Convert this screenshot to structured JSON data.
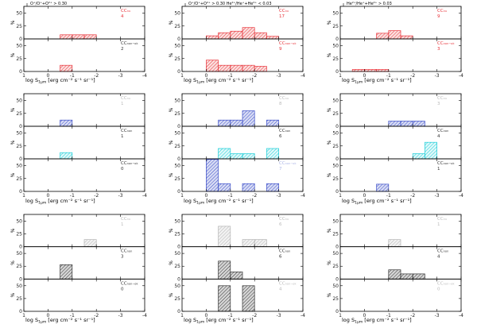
{
  "colors": {
    "red": "#e8333a",
    "red_fill": "#f3a7a3",
    "blue": "#3a4dc8",
    "blue_fill": "#8e9be0",
    "cyan": "#19cdd8",
    "cyan_fill": "#a9eef1",
    "gray": "#b5b5b5",
    "gray_fill": "#d9d9d9",
    "black": "#333333",
    "black_fill": "#8a8a8a",
    "fade": "#bbbbbb",
    "fade_blue": "#aab4e6"
  },
  "chart_data": {
    "type": "bar",
    "title": "",
    "xlabel": "log S$_{1μm}$ [erg cm$^{-2}$ s$^{-1}$ sr$^{-1}$]",
    "xlabel_display": "log S",
    "xlabel_sub": "1μm",
    "xlabel_units": " [erg cm⁻² s⁻¹ sr⁻¹]",
    "ylabel": "%",
    "xlim": [
      1,
      -4
    ],
    "xticks": [
      1,
      0,
      -1,
      -2,
      -3,
      -4
    ],
    "ylim": [
      0,
      60
    ],
    "yticks": [
      0,
      25,
      50
    ],
    "bin_width": 0.5,
    "headers": [
      "O⁺/O⁺+O²⁺ > 0.30",
      "O⁺/O⁺+O²⁺ > 0.30    He²⁺/He⁺+He²⁺ < 0.03",
      "He²⁺/He⁺+He²⁺ > 0.03"
    ],
    "panels": [
      {
        "row": 0,
        "col": 0,
        "stack": 0,
        "nstack": 2,
        "label": "CCₙᵤ",
        "count": "4",
        "color": "red",
        "tag_color": "red",
        "bins": [
          [
            -0.5,
            8
          ],
          [
            -1.0,
            8
          ],
          [
            -1.5,
            8
          ]
        ]
      },
      {
        "row": 0,
        "col": 0,
        "stack": 1,
        "nstack": 2,
        "label": "CCₙₒₙ₋ₒₖ",
        "count": "2",
        "color": "red",
        "tag_color": "black",
        "bins": [
          [
            -0.5,
            12
          ]
        ]
      },
      {
        "row": 0,
        "col": 1,
        "stack": 0,
        "nstack": 2,
        "label": "CCₙᵤ",
        "count": "17",
        "color": "red",
        "tag_color": "red",
        "bins": [
          [
            0.0,
            6
          ],
          [
            -0.5,
            12
          ],
          [
            -1.0,
            15
          ],
          [
            -1.5,
            22
          ],
          [
            -2.0,
            12
          ],
          [
            -2.5,
            5
          ]
        ]
      },
      {
        "row": 0,
        "col": 1,
        "stack": 1,
        "nstack": 2,
        "label": "CCₙₒₙ₋ₒₖ",
        "count": "9",
        "color": "red",
        "tag_color": "red",
        "bins": [
          [
            0.0,
            22
          ],
          [
            -0.5,
            12
          ],
          [
            -1.0,
            12
          ],
          [
            -1.5,
            12
          ],
          [
            -2.0,
            10
          ]
        ]
      },
      {
        "row": 0,
        "col": 2,
        "stack": 0,
        "nstack": 2,
        "label": "CCₙᵤ",
        "count": "9",
        "color": "red",
        "tag_color": "red",
        "bins": [
          [
            -0.5,
            11
          ],
          [
            -1.0,
            16
          ],
          [
            -1.5,
            6
          ]
        ]
      },
      {
        "row": 0,
        "col": 2,
        "stack": 1,
        "nstack": 2,
        "label": "CCₙₒₙ₋ₒₖ",
        "count": "3",
        "color": "red",
        "tag_color": "red",
        "bins": [
          [
            0.5,
            4
          ],
          [
            0.0,
            4
          ],
          [
            -0.5,
            4
          ]
        ]
      },
      {
        "row": 1,
        "col": 0,
        "stack": 0,
        "nstack": 3,
        "label": "CCₙᵤ",
        "count": "1",
        "color": "blue",
        "tag_color": "fade",
        "bins": [
          [
            -0.5,
            12
          ]
        ]
      },
      {
        "row": 1,
        "col": 0,
        "stack": 1,
        "nstack": 3,
        "label": "CCₙₒₙ",
        "count": "1",
        "color": "cyan",
        "tag_color": "black",
        "bins": [
          [
            -0.5,
            12
          ]
        ]
      },
      {
        "row": 1,
        "col": 0,
        "stack": 2,
        "nstack": 3,
        "label": "CCₙₒₙ₋ₒₖ",
        "count": "0",
        "color": "blue",
        "tag_color": "black",
        "bins": []
      },
      {
        "row": 1,
        "col": 1,
        "stack": 0,
        "nstack": 3,
        "label": "CCₙᵤ",
        "count": "8",
        "color": "blue",
        "tag_color": "fade",
        "bins": [
          [
            -0.5,
            12
          ],
          [
            -1.0,
            12
          ],
          [
            -1.5,
            30
          ],
          [
            -2.5,
            12
          ]
        ]
      },
      {
        "row": 1,
        "col": 1,
        "stack": 1,
        "nstack": 3,
        "label": "CCₙₒₙ",
        "count": "6",
        "color": "cyan",
        "tag_color": "black",
        "bins": [
          [
            -0.5,
            20
          ],
          [
            -1.0,
            10
          ],
          [
            -1.5,
            10
          ],
          [
            -2.5,
            20
          ]
        ]
      },
      {
        "row": 1,
        "col": 1,
        "stack": 2,
        "nstack": 3,
        "label": "CCₙₒₙ₋ₒₖ",
        "count": "7",
        "color": "blue",
        "tag_color": "fade_blue",
        "bins": [
          [
            0.0,
            62
          ],
          [
            -0.5,
            15
          ],
          [
            -1.5,
            15
          ],
          [
            -2.5,
            15
          ]
        ]
      },
      {
        "row": 1,
        "col": 2,
        "stack": 0,
        "nstack": 3,
        "label": "CCₙᵤ",
        "count": "3",
        "color": "blue",
        "tag_color": "fade",
        "bins": [
          [
            -1.0,
            10
          ],
          [
            -1.5,
            10
          ],
          [
            -2.0,
            10
          ]
        ]
      },
      {
        "row": 1,
        "col": 2,
        "stack": 1,
        "nstack": 3,
        "label": "CCₙₒₙ",
        "count": "4",
        "color": "cyan",
        "tag_color": "black",
        "bins": [
          [
            -2.0,
            10
          ],
          [
            -2.5,
            32
          ]
        ]
      },
      {
        "row": 1,
        "col": 2,
        "stack": 2,
        "nstack": 3,
        "label": "CCₙₒₙ₋ₒₖ",
        "count": "1",
        "color": "blue",
        "tag_color": "black",
        "bins": [
          [
            -0.5,
            14
          ]
        ]
      },
      {
        "row": 2,
        "col": 0,
        "stack": 0,
        "nstack": 3,
        "label": "CCₙᵤ",
        "count": "1",
        "color": "gray",
        "tag_color": "fade",
        "bins": [
          [
            -1.5,
            14
          ]
        ]
      },
      {
        "row": 2,
        "col": 0,
        "stack": 1,
        "nstack": 3,
        "label": "CCₙₒₙ",
        "count": "3",
        "color": "black",
        "tag_color": "black",
        "bins": [
          [
            -0.5,
            28
          ]
        ]
      },
      {
        "row": 2,
        "col": 0,
        "stack": 2,
        "nstack": 3,
        "label": "CCₙₒₙ₋ₒₖ",
        "count": "0",
        "color": "black",
        "tag_color": "black",
        "bins": []
      },
      {
        "row": 2,
        "col": 1,
        "stack": 0,
        "nstack": 3,
        "label": "CCₙᵤ",
        "count": "6",
        "color": "gray",
        "tag_color": "fade",
        "bins": [
          [
            -0.5,
            40
          ],
          [
            -1.5,
            14
          ],
          [
            -2.0,
            14
          ]
        ]
      },
      {
        "row": 2,
        "col": 1,
        "stack": 1,
        "nstack": 3,
        "label": "CCₙₒₙ",
        "count": "6",
        "color": "black",
        "tag_color": "black",
        "bins": [
          [
            -0.5,
            35
          ],
          [
            -1.0,
            14
          ]
        ]
      },
      {
        "row": 2,
        "col": 1,
        "stack": 2,
        "nstack": 3,
        "label": "CCₙₒₙ₋ₒₖ",
        "count": "4",
        "color": "black",
        "tag_color": "fade",
        "bins": [
          [
            -0.5,
            50
          ],
          [
            -1.5,
            50
          ]
        ]
      },
      {
        "row": 2,
        "col": 2,
        "stack": 0,
        "nstack": 3,
        "label": "CCₙᵤ",
        "count": "1",
        "color": "gray",
        "tag_color": "fade",
        "bins": [
          [
            -1.0,
            14
          ]
        ]
      },
      {
        "row": 2,
        "col": 2,
        "stack": 1,
        "nstack": 3,
        "label": "CCₙₒₙ",
        "count": "4",
        "color": "black",
        "tag_color": "black",
        "bins": [
          [
            -1.0,
            18
          ],
          [
            -1.5,
            10
          ],
          [
            -2.0,
            10
          ]
        ]
      },
      {
        "row": 2,
        "col": 2,
        "stack": 2,
        "nstack": 3,
        "label": "CCₙₒₙ₋ₒₖ",
        "count": "0",
        "color": "black",
        "tag_color": "fade",
        "bins": []
      }
    ]
  }
}
